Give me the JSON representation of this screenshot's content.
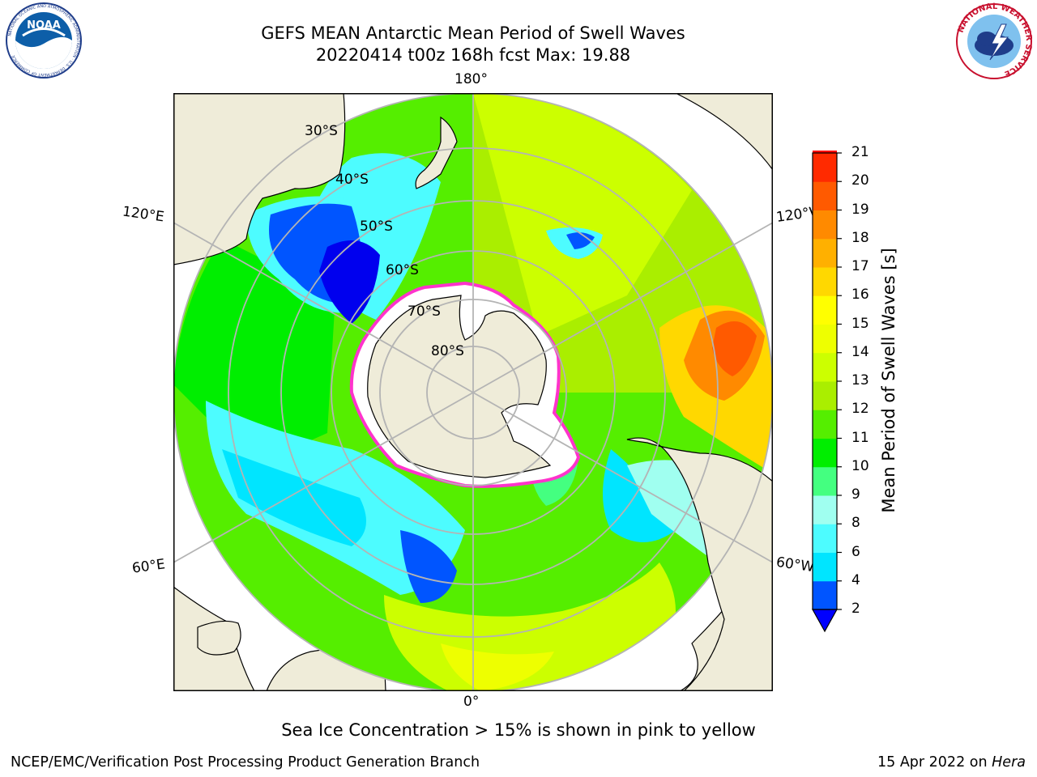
{
  "header": {
    "title_line1": "GEFS MEAN Antarctic Mean Period of Swell Waves",
    "title_line2": "20220414 t00z 168h fcst   Max: 19.88"
  },
  "logos": {
    "left": "NOAA",
    "left_ring": "NATIONAL OCEANIC AND ATMOSPHERIC ADMINISTRATION · U.S. DEPARTMENT OF COMMERCE",
    "right_ring": "NATIONAL WEATHER SERVICE"
  },
  "map": {
    "projection": "south polar stereographic",
    "lon_labels": {
      "top": "180°",
      "bottom": "0°",
      "left_upper": "120°E",
      "left_lower": "60°E",
      "right_upper": "120°W",
      "right_lower": "60°W"
    },
    "lat_labels": [
      "30°S",
      "40°S",
      "50°S",
      "60°S",
      "70°S",
      "80°S"
    ],
    "colors": {
      "land": "#efecd9",
      "ice": "#ffffff",
      "ice_edge": "#ff33cc",
      "grid": "#b4b4b4"
    }
  },
  "colorbar": {
    "title": "Mean Period of Swell Waves [s]",
    "ticks": [
      "2",
      "4",
      "6",
      "8",
      "9",
      "10",
      "11",
      "12",
      "13",
      "14",
      "15",
      "16",
      "17",
      "18",
      "19",
      "20",
      "21"
    ],
    "bands": [
      "#0055ff",
      "#00e5ff",
      "#4dfcff",
      "#a0fff0",
      "#44ff80",
      "#00ee00",
      "#55ee00",
      "#aaee00",
      "#ccff00",
      "#eeff00",
      "#ffff00",
      "#ffd800",
      "#ffb000",
      "#ff8a00",
      "#ff5a00",
      "#ff2a00",
      "#ff0000"
    ],
    "under_color": "#0000ff"
  },
  "footer": {
    "note": "Sea Ice Concentration > 15% is shown in pink to yellow",
    "left": "NCEP/EMC/Verification Post Processing Product Generation Branch",
    "right_prefix": "15 Apr 2022 on ",
    "right_host": "Hera"
  }
}
